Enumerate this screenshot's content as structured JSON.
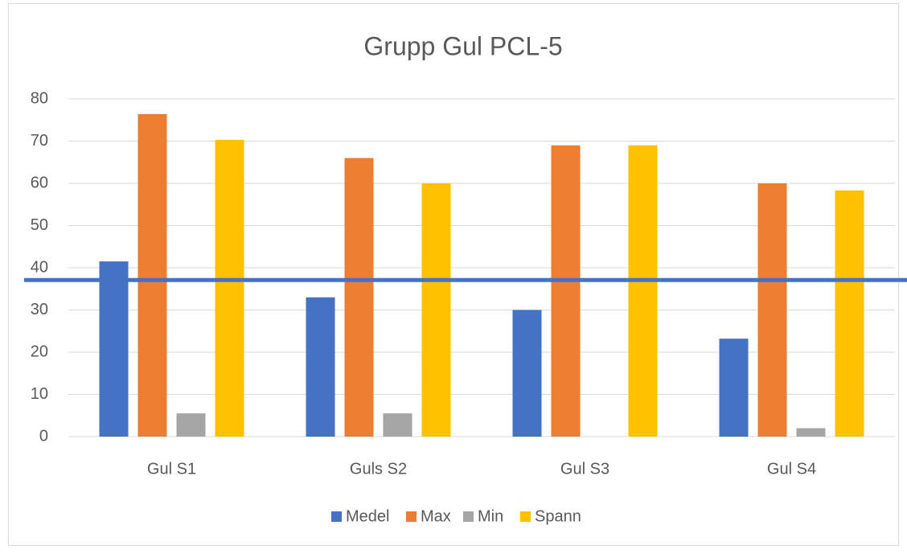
{
  "chart_data": {
    "type": "bar",
    "title": "Grupp Gul PCL-5",
    "categories": [
      "Gul S1",
      "Guls S2",
      "Gul S3",
      "Gul S4"
    ],
    "series": [
      {
        "name": "Medel",
        "color": "#4472c4",
        "values": [
          41.5,
          33,
          30,
          23.2
        ]
      },
      {
        "name": "Max",
        "color": "#ed7d31",
        "values": [
          76.4,
          66,
          69,
          60
        ]
      },
      {
        "name": "Min",
        "color": "#a5a5a5",
        "values": [
          5.5,
          5.5,
          0,
          2
        ]
      },
      {
        "name": "Spann",
        "color": "#ffc000",
        "values": [
          70.3,
          60,
          69,
          58.3
        ]
      }
    ],
    "ylim": [
      0,
      80
    ],
    "yticks": [
      0,
      10,
      20,
      30,
      40,
      50,
      60,
      70,
      80
    ],
    "grid": true,
    "reference_line": {
      "value": 37.1,
      "color": "#4472c4"
    },
    "legend": "bottom"
  }
}
